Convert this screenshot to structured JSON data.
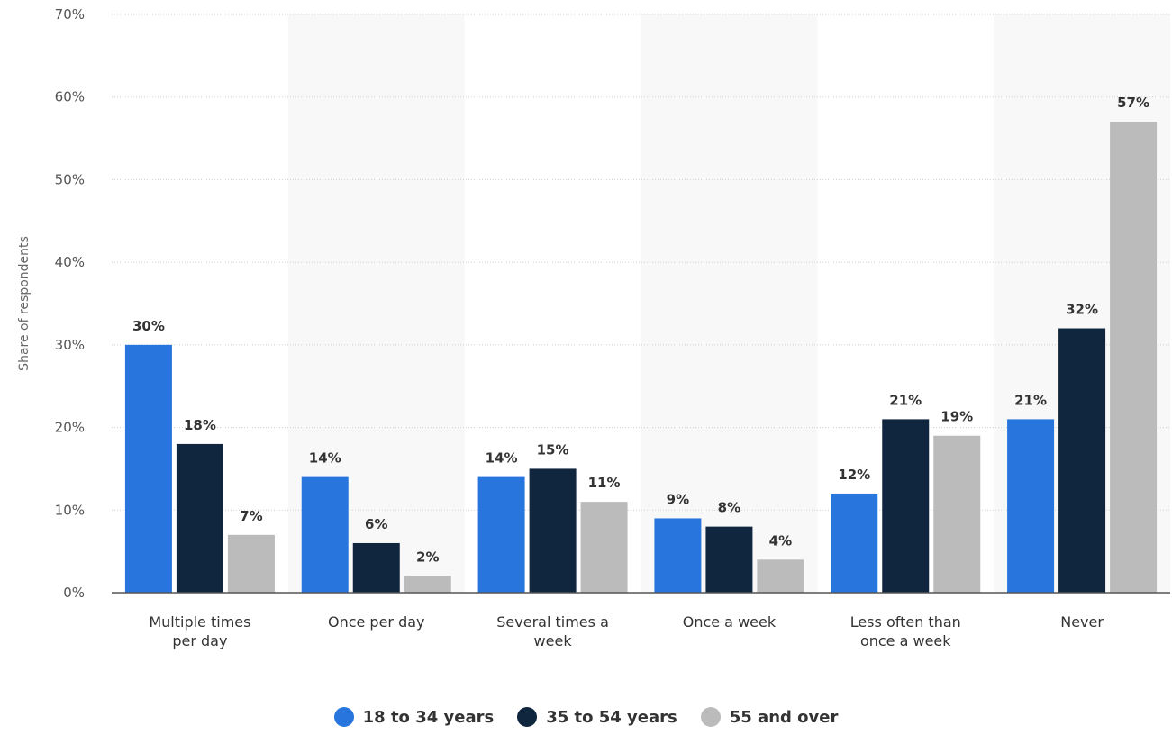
{
  "chart_data": {
    "type": "bar",
    "ylabel": "Share of respondents",
    "xlabel": "",
    "ylim": [
      0,
      70
    ],
    "yticks": [
      0,
      10,
      20,
      30,
      40,
      50,
      60,
      70
    ],
    "tick_suffix": "%",
    "grid": true,
    "legend_position": "bottom",
    "categories": [
      [
        "Multiple times",
        "per day"
      ],
      [
        "Once per day"
      ],
      [
        "Several times a",
        "week"
      ],
      [
        "Once a week"
      ],
      [
        "Less often than",
        "once a week"
      ],
      [
        "Never"
      ]
    ],
    "series": [
      {
        "name": "18 to 34 years",
        "color": "#2876dd",
        "values": [
          30,
          14,
          14,
          9,
          12,
          21
        ],
        "labels": [
          "30%",
          "14%",
          "14%",
          "9%",
          "12%",
          "21%"
        ]
      },
      {
        "name": "35 to 54 years",
        "color": "#10263e",
        "values": [
          18,
          6,
          15,
          8,
          21,
          32
        ],
        "labels": [
          "18%",
          "6%",
          "15%",
          "8%",
          "21%",
          "32%"
        ]
      },
      {
        "name": "55 and over",
        "color": "#bbbbbb",
        "values": [
          7,
          2,
          11,
          4,
          19,
          57
        ],
        "labels": [
          "7%",
          "2%",
          "11%",
          "4%",
          "19%",
          "57%"
        ]
      }
    ]
  }
}
